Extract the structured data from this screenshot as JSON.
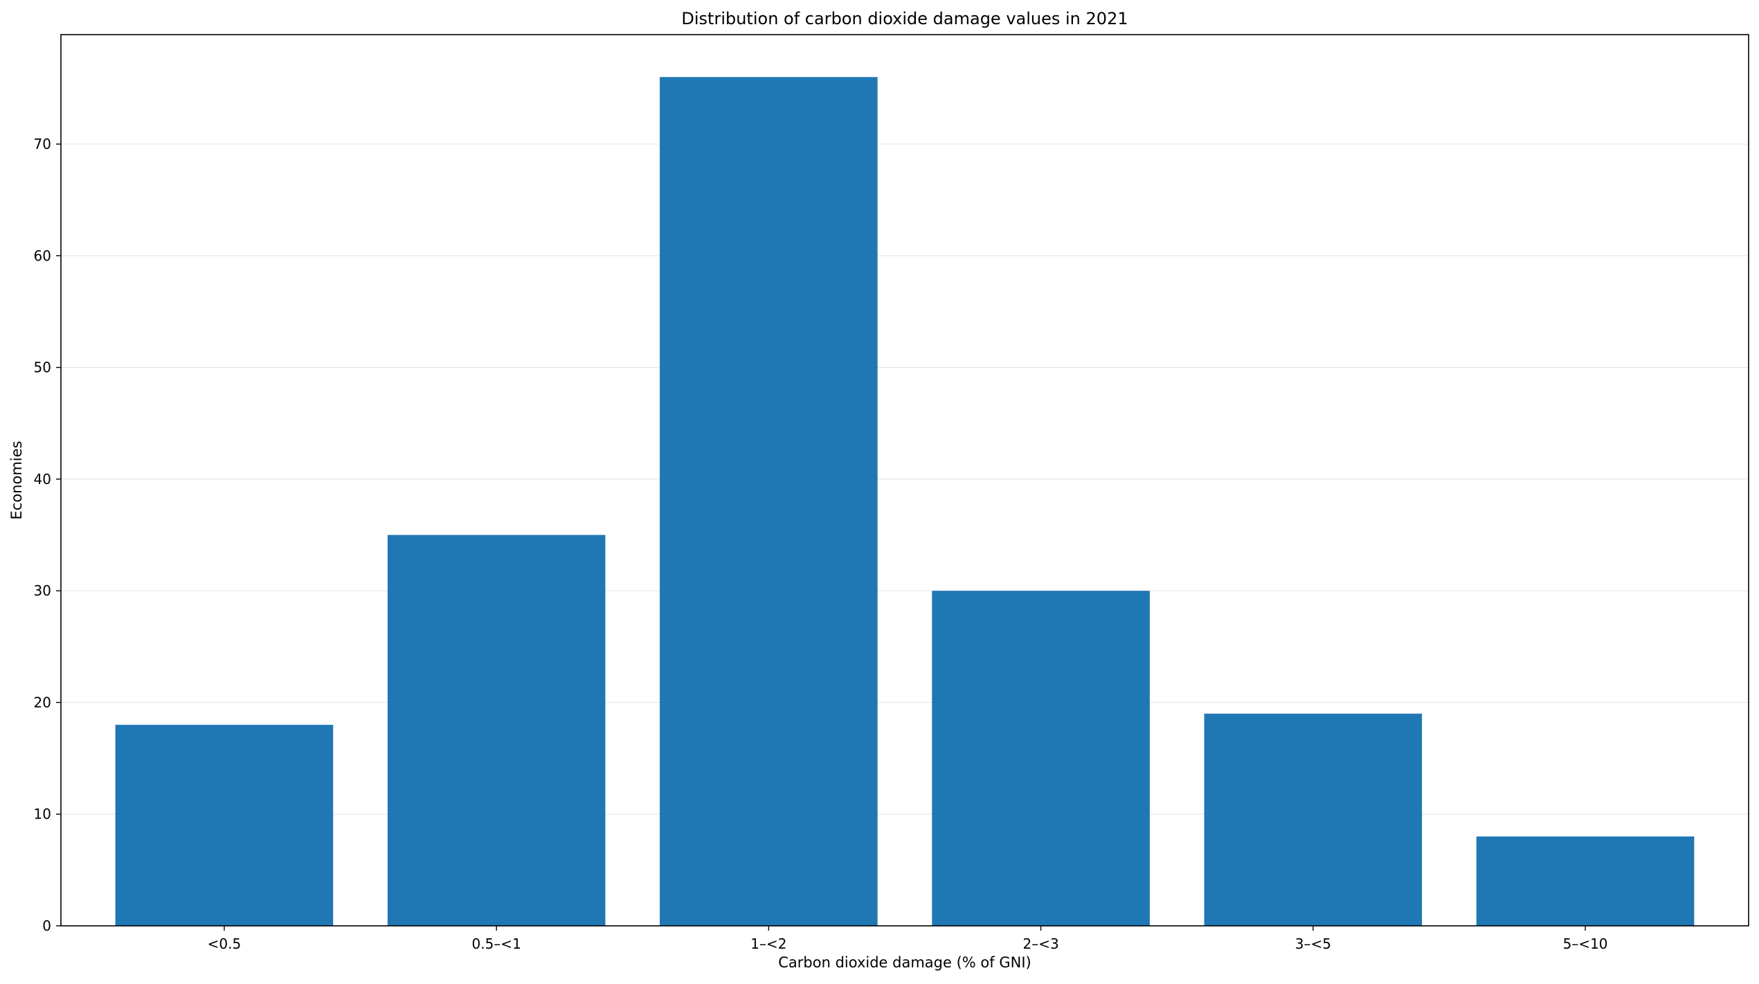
{
  "chart_data": {
    "type": "bar",
    "title": "Distribution of carbon dioxide damage values in 2021",
    "xlabel": "Carbon dioxide damage (% of GNI)",
    "ylabel": "Economies",
    "categories": [
      "<0.5",
      "0.5–<1",
      "1–<2",
      "2–<3",
      "3–<5",
      "5–<10"
    ],
    "values": [
      18,
      35,
      76,
      30,
      19,
      8
    ],
    "ylim": [
      0,
      79.8
    ],
    "yticks": [
      0,
      10,
      20,
      30,
      40,
      50,
      60,
      70
    ],
    "ytick_labels": [
      "0",
      "10",
      "20",
      "30",
      "40",
      "50",
      "60",
      "70"
    ],
    "grid": "horizontal",
    "bar_color": "#1f77b4",
    "grid_color": "#e6e6e6"
  }
}
